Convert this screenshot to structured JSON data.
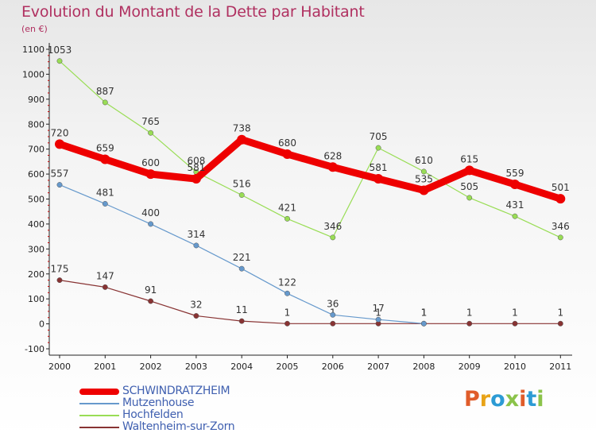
{
  "header": {
    "title": "Evolution du Montant de la Dette par Habitant",
    "subtitle": "(en €)"
  },
  "logo": {
    "text": "Proxiti",
    "colors": [
      "#e05c2a",
      "#e8a317",
      "#2d9bd4",
      "#8bc34a",
      "#e05c2a",
      "#2d9bd4",
      "#8bc34a"
    ]
  },
  "colors": {
    "title": "#b03060",
    "legend_text": "#4060b0",
    "axis": "#333333",
    "grid_tick": "#cc0000"
  },
  "chart_data": {
    "type": "line",
    "title": "Evolution du Montant de la Dette par Habitant",
    "subtitle": "(en €)",
    "xlabel": "",
    "ylabel": "",
    "ylim": [
      -100,
      1100
    ],
    "y_ticks": [
      -100,
      0,
      100,
      200,
      300,
      400,
      500,
      600,
      700,
      800,
      900,
      1000,
      1100
    ],
    "categories": [
      "2000",
      "2001",
      "2002",
      "2003",
      "2004",
      "2005",
      "2006",
      "2007",
      "2008",
      "2009",
      "2010",
      "2011"
    ],
    "grid": false,
    "legend_position": "bottom-left",
    "series": [
      {
        "name": "SCHWINDRATZHEIM",
        "color": "#ee0000",
        "values": [
          720,
          659,
          600,
          581,
          738,
          680,
          628,
          581,
          535,
          615,
          559,
          501
        ],
        "thick": true
      },
      {
        "name": "Mutzenhouse",
        "color": "#6699cc",
        "values": [
          557,
          481,
          400,
          314,
          221,
          122,
          36,
          17,
          1,
          null,
          null,
          null
        ],
        "thick": false
      },
      {
        "name": "Hochfelden",
        "color": "#99dd55",
        "values": [
          1053,
          887,
          765,
          608,
          516,
          421,
          346,
          705,
          610,
          505,
          431,
          346
        ],
        "thick": false
      },
      {
        "name": "Waltenheim-sur-Zorn",
        "color": "#883333",
        "values": [
          175,
          147,
          91,
          32,
          11,
          1,
          1,
          1,
          1,
          1,
          1,
          1
        ],
        "thick": false
      }
    ]
  }
}
